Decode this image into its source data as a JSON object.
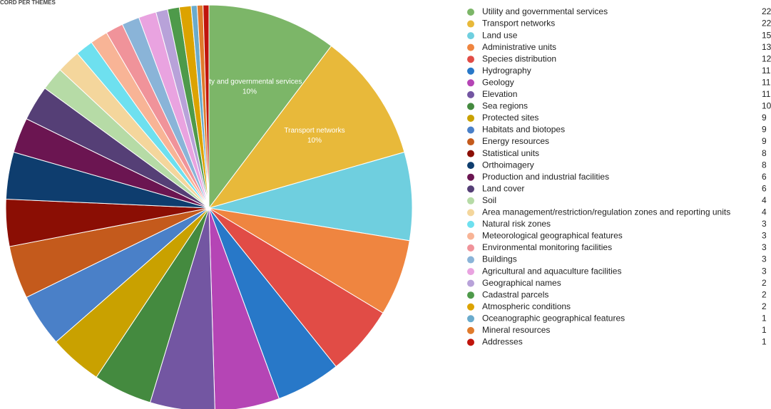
{
  "chart_data": {
    "type": "pie",
    "title": "CORD PER THEMES",
    "categories": [
      "Utility and governmental services",
      "Transport networks",
      "Land use",
      "Administrative units",
      "Species distribution",
      "Hydrography",
      "Geology",
      "Elevation",
      "Sea regions",
      "Protected sites",
      "Habitats and biotopes",
      "Energy resources",
      "Statistical units",
      "Orthoimagery",
      "Production and industrial facilities",
      "Land cover",
      "Soil",
      "Area management/restriction/regulation zones and reporting units",
      "Natural risk zones",
      "Meteorological geographical features",
      "Environmental monitoring facilities",
      "Buildings",
      "Agricultural and aquaculture facilities",
      "Geographical names",
      "Cadastral parcels",
      "Atmospheric conditions",
      "Oceanographic geographical features",
      "Mineral resources",
      "Addresses"
    ],
    "values": [
      22,
      22,
      15,
      13,
      12,
      11,
      11,
      11,
      10,
      9,
      9,
      9,
      8,
      8,
      6,
      6,
      4,
      4,
      3,
      3,
      3,
      3,
      3,
      2,
      2,
      2,
      1,
      1,
      1
    ],
    "percent_labels": [
      "10%",
      "10%",
      null,
      null,
      null,
      null,
      null,
      null,
      null,
      null,
      null,
      null,
      null,
      null,
      null,
      null,
      null,
      null,
      null,
      null,
      null,
      null,
      null,
      null,
      null,
      null,
      null,
      null,
      null
    ],
    "colors": [
      "#7cb668",
      "#e8b93a",
      "#6fcfdf",
      "#ef8540",
      "#e14c46",
      "#2878c8",
      "#b545b5",
      "#7356a2",
      "#448a3f",
      "#c9a100",
      "#4a80c8",
      "#c45a1c",
      "#8b0e04",
      "#0e3d6e",
      "#6b1551",
      "#553f76",
      "#b6dba6",
      "#f4d69c",
      "#6ee0ef",
      "#f8b496",
      "#f0939a",
      "#8ab4d8",
      "#e9a3e0",
      "#b8a2d9",
      "#4e9a4a",
      "#dca300",
      "#6aabcc",
      "#e07b2c",
      "#c0140c"
    ],
    "legend": "right"
  }
}
